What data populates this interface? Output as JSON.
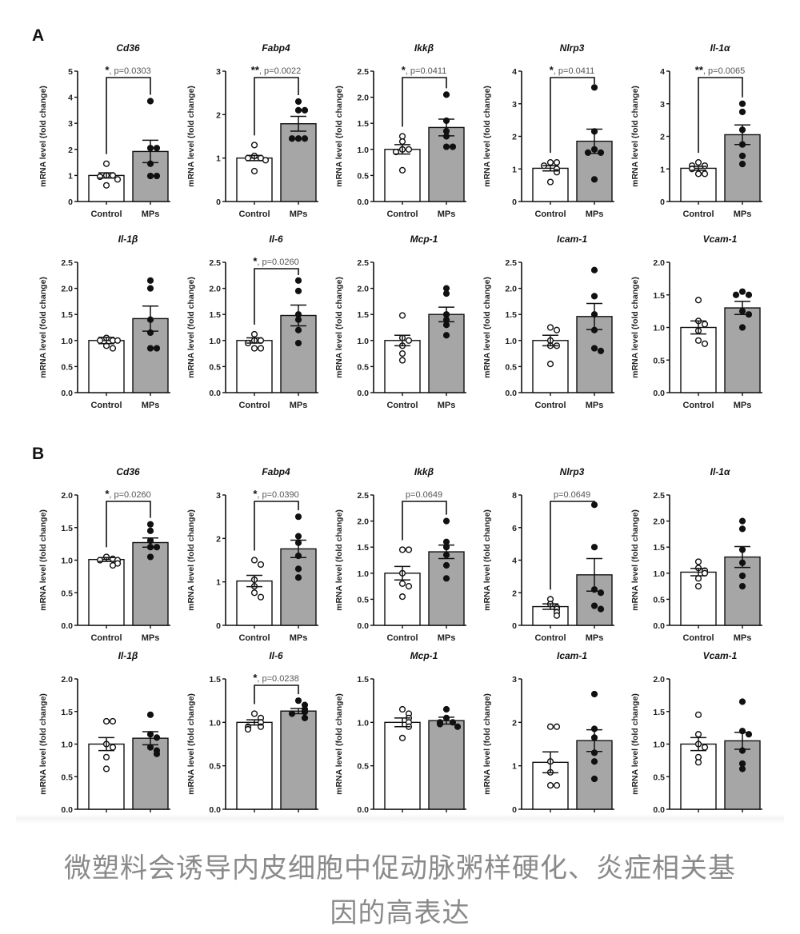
{
  "section_labels": {
    "a": "A",
    "b": "B"
  },
  "caption": {
    "line1": "微塑料会诱导内皮细胞中促动脉粥样硬化、炎症相关基因的高表达",
    "line2": "因的高表达"
  },
  "colors": {
    "control_fill": "#ffffff",
    "mps_fill": "#a6a6a6",
    "ink": "#111111",
    "pvalue_text": "#555555"
  },
  "chart_data": [
    {
      "type": "bar",
      "panel": "A",
      "title": "Cd36",
      "ylabel": "mRNA level (fold change)",
      "categories": [
        "Control",
        "MPs"
      ],
      "ylim": [
        0,
        5
      ],
      "yticks": [
        "0",
        "1",
        "2",
        "3",
        "4",
        "5"
      ],
      "series": [
        {
          "name": "Control",
          "mean": 1.0,
          "sem": 0.1,
          "points": [
            1.45,
            1.0,
            0.95,
            1.0,
            0.85,
            0.62
          ]
        },
        {
          "name": "MPs",
          "mean": 1.92,
          "sem": 0.43,
          "points": [
            3.85,
            2.05,
            2.05,
            1.45,
            0.98,
            0.98
          ]
        }
      ],
      "sig": {
        "stars": "*",
        "p": "p=0.0303"
      }
    },
    {
      "type": "bar",
      "panel": "A",
      "title": "Fabp4",
      "ylabel": "mRNA level (fold change)",
      "categories": [
        "Control",
        "MPs"
      ],
      "ylim": [
        0,
        3
      ],
      "yticks": [
        "0",
        "1",
        "2",
        "3"
      ],
      "series": [
        {
          "name": "Control",
          "mean": 1.0,
          "sem": 0.06,
          "points": [
            1.3,
            1.05,
            1.0,
            1.0,
            0.95,
            0.7
          ]
        },
        {
          "name": "MPs",
          "mean": 1.79,
          "sem": 0.17,
          "points": [
            2.3,
            2.1,
            2.1,
            1.45,
            1.45,
            1.45
          ]
        }
      ],
      "sig": {
        "stars": "**",
        "p": "p=0.0022"
      }
    },
    {
      "type": "bar",
      "panel": "A",
      "title": "Ikkβ",
      "ylabel": "mRNA level (fold change)",
      "categories": [
        "Control",
        "MPs"
      ],
      "ylim": [
        0,
        2.5
      ],
      "yticks": [
        "0.0",
        "0.5",
        "1.0",
        "1.5",
        "2.0",
        "2.5"
      ],
      "series": [
        {
          "name": "Control",
          "mean": 1.0,
          "sem": 0.09,
          "points": [
            1.25,
            1.15,
            1.0,
            1.0,
            0.95,
            0.6
          ]
        },
        {
          "name": "MPs",
          "mean": 1.42,
          "sem": 0.16,
          "points": [
            2.05,
            1.55,
            1.35,
            1.25,
            1.05,
            1.05
          ]
        }
      ],
      "sig": {
        "stars": "*",
        "p": "p=0.0411"
      }
    },
    {
      "type": "bar",
      "panel": "A",
      "title": "Nlrp3",
      "ylabel": "mRNA level (fold change)",
      "categories": [
        "Control",
        "MPs"
      ],
      "ylim": [
        0,
        4
      ],
      "yticks": [
        "0",
        "1",
        "2",
        "3",
        "4"
      ],
      "series": [
        {
          "name": "Control",
          "mean": 1.02,
          "sem": 0.08,
          "points": [
            1.2,
            1.2,
            1.1,
            1.0,
            0.9,
            0.6
          ]
        },
        {
          "name": "MPs",
          "mean": 1.85,
          "sem": 0.37,
          "points": [
            3.5,
            2.15,
            1.6,
            1.5,
            1.5,
            0.68
          ]
        }
      ],
      "sig": {
        "stars": "*",
        "p": "p=0.0411"
      }
    },
    {
      "type": "bar",
      "panel": "A",
      "title": "Il-1α",
      "ylabel": "mRNA level (fold change)",
      "categories": [
        "Control",
        "MPs"
      ],
      "ylim": [
        0,
        4
      ],
      "yticks": [
        "0",
        "1",
        "2",
        "3",
        "4"
      ],
      "series": [
        {
          "name": "Control",
          "mean": 1.02,
          "sem": 0.06,
          "points": [
            1.2,
            1.1,
            1.1,
            1.0,
            0.85,
            0.85
          ]
        },
        {
          "name": "MPs",
          "mean": 2.05,
          "sem": 0.3,
          "points": [
            3.0,
            2.75,
            2.2,
            1.75,
            1.4,
            1.15
          ]
        }
      ],
      "sig": {
        "stars": "**",
        "p": "p=0.0065"
      }
    },
    {
      "type": "bar",
      "panel": "A",
      "title": "Il-1β",
      "ylabel": "mRNA level (fold change)",
      "categories": [
        "Control",
        "MPs"
      ],
      "ylim": [
        0,
        2.5
      ],
      "yticks": [
        "0.0",
        "0.5",
        "1.0",
        "1.5",
        "2.0",
        "2.5"
      ],
      "series": [
        {
          "name": "Control",
          "mean": 1.0,
          "sem": 0.06,
          "points": [
            1.05,
            1.0,
            1.0,
            1.0,
            0.9,
            0.85
          ]
        },
        {
          "name": "MPs",
          "mean": 1.42,
          "sem": 0.24,
          "points": [
            2.15,
            2.0,
            1.4,
            1.15,
            0.85,
            0.85
          ]
        }
      ],
      "sig": null
    },
    {
      "type": "bar",
      "panel": "A",
      "title": "Il-6",
      "ylabel": "mRNA level (fold change)",
      "categories": [
        "Control",
        "MPs"
      ],
      "ylim": [
        0,
        2.5
      ],
      "yticks": [
        "0.0",
        "0.5",
        "1.0",
        "1.5",
        "2.0",
        "2.5"
      ],
      "series": [
        {
          "name": "Control",
          "mean": 1.0,
          "sem": 0.05,
          "points": [
            1.12,
            1.0,
            1.0,
            0.95,
            0.85,
            0.85
          ]
        },
        {
          "name": "MPs",
          "mean": 1.48,
          "sem": 0.2,
          "points": [
            2.15,
            1.95,
            1.5,
            1.4,
            1.2,
            0.95
          ]
        }
      ],
      "sig": {
        "stars": "*",
        "p": "p=0.0260"
      }
    },
    {
      "type": "bar",
      "panel": "A",
      "title": "Mcp-1",
      "ylabel": "mRNA level (fold change)",
      "categories": [
        "Control",
        "MPs"
      ],
      "ylim": [
        0,
        2.5
      ],
      "yticks": [
        "0.0",
        "0.5",
        "1.0",
        "1.5",
        "2.0",
        "2.5"
      ],
      "series": [
        {
          "name": "Control",
          "mean": 1.0,
          "sem": 0.1,
          "points": [
            1.48,
            1.05,
            1.0,
            0.9,
            0.75,
            0.62
          ]
        },
        {
          "name": "MPs",
          "mean": 1.5,
          "sem": 0.14,
          "points": [
            2.0,
            1.9,
            1.5,
            1.4,
            1.3,
            1.1
          ]
        }
      ],
      "sig": null
    },
    {
      "type": "bar",
      "panel": "A",
      "title": "Icam-1",
      "ylabel": "mRNA level (fold change)",
      "categories": [
        "Control",
        "MPs"
      ],
      "ylim": [
        0,
        2.5
      ],
      "yticks": [
        "0.0",
        "0.5",
        "1.0",
        "1.5",
        "2.0",
        "2.5"
      ],
      "series": [
        {
          "name": "Control",
          "mean": 1.0,
          "sem": 0.1,
          "points": [
            1.25,
            1.2,
            1.0,
            0.9,
            0.9,
            0.55
          ]
        },
        {
          "name": "MPs",
          "mean": 1.46,
          "sem": 0.25,
          "points": [
            2.35,
            1.85,
            1.5,
            1.2,
            0.85,
            0.8
          ]
        }
      ],
      "sig": null
    },
    {
      "type": "bar",
      "panel": "A",
      "title": "Vcam-1",
      "ylabel": "mRNA level (fold change)",
      "categories": [
        "Control",
        "MPs"
      ],
      "ylim": [
        0,
        2.0
      ],
      "yticks": [
        "0.0",
        "0.5",
        "1.0",
        "1.5",
        "2.0"
      ],
      "series": [
        {
          "name": "Control",
          "mean": 1.0,
          "sem": 0.1,
          "points": [
            1.42,
            1.1,
            1.05,
            0.95,
            0.8,
            0.75
          ]
        },
        {
          "name": "MPs",
          "mean": 1.3,
          "sem": 0.1,
          "points": [
            1.55,
            1.5,
            1.5,
            1.25,
            1.2,
            1.0
          ]
        }
      ],
      "sig": null
    },
    {
      "type": "bar",
      "panel": "B",
      "title": "Cd36",
      "ylabel": "mRNA level (fold change)",
      "categories": [
        "Control",
        "MPs"
      ],
      "ylim": [
        0,
        2.0
      ],
      "yticks": [
        "0.0",
        "0.5",
        "1.0",
        "1.5",
        "2.0"
      ],
      "series": [
        {
          "name": "Control",
          "mean": 1.01,
          "sem": 0.03,
          "points": [
            1.05,
            1.02,
            1.0,
            1.0,
            0.95,
            0.92
          ]
        },
        {
          "name": "MPs",
          "mean": 1.27,
          "sem": 0.07,
          "points": [
            1.55,
            1.45,
            1.3,
            1.2,
            1.2,
            1.05
          ]
        }
      ],
      "sig": {
        "stars": "*",
        "p": "p=0.0260"
      }
    },
    {
      "type": "bar",
      "panel": "B",
      "title": "Fabp4",
      "ylabel": "mRNA level (fold change)",
      "categories": [
        "Control",
        "MPs"
      ],
      "ylim": [
        0,
        3
      ],
      "yticks": [
        "0",
        "1",
        "2",
        "3"
      ],
      "series": [
        {
          "name": "Control",
          "mean": 1.02,
          "sem": 0.13,
          "points": [
            1.5,
            1.4,
            1.05,
            0.9,
            0.75,
            0.65
          ]
        },
        {
          "name": "MPs",
          "mean": 1.76,
          "sem": 0.2,
          "points": [
            2.5,
            2.05,
            1.9,
            1.6,
            1.3,
            1.1
          ]
        }
      ],
      "sig": {
        "stars": "*",
        "p": "p=0.0390"
      }
    },
    {
      "type": "bar",
      "panel": "B",
      "title": "Ikkβ",
      "ylabel": "mRNA level (fold change)",
      "categories": [
        "Control",
        "MPs"
      ],
      "ylim": [
        0,
        2.5
      ],
      "yticks": [
        "0.0",
        "0.5",
        "1.0",
        "1.5",
        "2.0",
        "2.5"
      ],
      "series": [
        {
          "name": "Control",
          "mean": 1.0,
          "sem": 0.13,
          "points": [
            1.45,
            1.45,
            1.0,
            0.8,
            0.75,
            0.55
          ]
        },
        {
          "name": "MPs",
          "mean": 1.41,
          "sem": 0.13,
          "points": [
            2.0,
            1.6,
            1.5,
            1.35,
            1.15,
            0.9
          ]
        }
      ],
      "sig": {
        "stars": "",
        "p": "p=0.0649"
      }
    },
    {
      "type": "bar",
      "panel": "B",
      "title": "Nlrp3",
      "ylabel": "mRNA level (fold change)",
      "categories": [
        "Control",
        "MPs"
      ],
      "ylim": [
        0,
        8
      ],
      "yticks": [
        "0",
        "2",
        "4",
        "6",
        "8"
      ],
      "series": [
        {
          "name": "Control",
          "mean": 1.15,
          "sem": 0.17,
          "points": [
            1.6,
            1.3,
            1.1,
            1.0,
            0.8,
            0.6
          ]
        },
        {
          "name": "MPs",
          "mean": 3.1,
          "sem": 1.0,
          "points": [
            7.4,
            4.8,
            2.2,
            2.0,
            1.2,
            1.0
          ]
        }
      ],
      "sig": {
        "stars": "",
        "p": "p=0.0649"
      }
    },
    {
      "type": "bar",
      "panel": "B",
      "title": "Il-1α",
      "ylabel": "mRNA level (fold change)",
      "categories": [
        "Control",
        "MPs"
      ],
      "ylim": [
        0,
        2.5
      ],
      "yticks": [
        "0.0",
        "0.5",
        "1.0",
        "1.5",
        "2.0",
        "2.5"
      ],
      "series": [
        {
          "name": "Control",
          "mean": 1.02,
          "sem": 0.07,
          "points": [
            1.22,
            1.1,
            1.05,
            1.0,
            0.9,
            0.75
          ]
        },
        {
          "name": "MPs",
          "mean": 1.31,
          "sem": 0.2,
          "points": [
            2.0,
            1.85,
            1.45,
            1.2,
            0.95,
            0.75
          ]
        }
      ],
      "sig": null
    },
    {
      "type": "bar",
      "panel": "B",
      "title": "Il-1β",
      "ylabel": "mRNA level (fold change)",
      "categories": [
        "Control",
        "MPs"
      ],
      "ylim": [
        0,
        2.0
      ],
      "yticks": [
        "0.0",
        "0.5",
        "1.0",
        "1.5",
        "2.0"
      ],
      "series": [
        {
          "name": "Control",
          "mean": 1.0,
          "sem": 0.1,
          "points": [
            1.35,
            1.35,
            1.0,
            0.95,
            0.8,
            0.62
          ]
        },
        {
          "name": "MPs",
          "mean": 1.09,
          "sem": 0.1,
          "points": [
            1.45,
            1.15,
            1.1,
            0.95,
            0.9,
            0.85
          ]
        }
      ],
      "sig": null
    },
    {
      "type": "bar",
      "panel": "B",
      "title": "Il-6",
      "ylabel": "mRNA level (fold change)",
      "categories": [
        "Control",
        "MPs"
      ],
      "ylim": [
        0,
        1.5
      ],
      "yticks": [
        "0.0",
        "0.5",
        "1.0",
        "1.5"
      ],
      "series": [
        {
          "name": "Control",
          "mean": 1.0,
          "sem": 0.03,
          "points": [
            1.1,
            1.05,
            1.0,
            0.95,
            0.95,
            0.92
          ]
        },
        {
          "name": "MPs",
          "mean": 1.13,
          "sem": 0.03,
          "points": [
            1.25,
            1.2,
            1.15,
            1.12,
            1.1,
            1.05
          ]
        }
      ],
      "sig": {
        "stars": "*",
        "p": "p=0.0238"
      }
    },
    {
      "type": "bar",
      "panel": "B",
      "title": "Mcp-1",
      "ylabel": "mRNA level (fold change)",
      "categories": [
        "Control",
        "MPs"
      ],
      "ylim": [
        0,
        1.5
      ],
      "yticks": [
        "0.0",
        "0.5",
        "1.0",
        "1.5"
      ],
      "series": [
        {
          "name": "Control",
          "mean": 1.0,
          "sem": 0.05,
          "points": [
            1.15,
            1.1,
            1.05,
            1.0,
            0.95,
            0.82
          ]
        },
        {
          "name": "MPs",
          "mean": 1.02,
          "sem": 0.04,
          "points": [
            1.15,
            1.05,
            1.0,
            1.0,
            0.98,
            0.95
          ]
        }
      ],
      "sig": null
    },
    {
      "type": "bar",
      "panel": "B",
      "title": "Icam-1",
      "ylabel": "mRNA level (fold change)",
      "categories": [
        "Control",
        "MPs"
      ],
      "ylim": [
        0,
        3
      ],
      "yticks": [
        "0",
        "1",
        "2",
        "3"
      ],
      "series": [
        {
          "name": "Control",
          "mean": 1.08,
          "sem": 0.24,
          "points": [
            1.9,
            1.9,
            1.1,
            0.85,
            0.55,
            0.55
          ]
        },
        {
          "name": "MPs",
          "mean": 1.58,
          "sem": 0.25,
          "points": [
            2.65,
            1.85,
            1.65,
            1.3,
            1.1,
            0.7
          ]
        }
      ],
      "sig": null
    },
    {
      "type": "bar",
      "panel": "B",
      "title": "Vcam-1",
      "ylabel": "mRNA level (fold change)",
      "categories": [
        "Control",
        "MPs"
      ],
      "ylim": [
        0,
        2.0
      ],
      "yticks": [
        "0.0",
        "0.5",
        "1.0",
        "1.5",
        "2.0"
      ],
      "series": [
        {
          "name": "Control",
          "mean": 1.0,
          "sem": 0.1,
          "points": [
            1.45,
            1.15,
            1.0,
            0.95,
            0.8,
            0.72
          ]
        },
        {
          "name": "MPs",
          "mean": 1.05,
          "sem": 0.13,
          "points": [
            1.65,
            1.2,
            1.15,
            0.9,
            0.7,
            0.62
          ]
        }
      ],
      "sig": null
    }
  ]
}
